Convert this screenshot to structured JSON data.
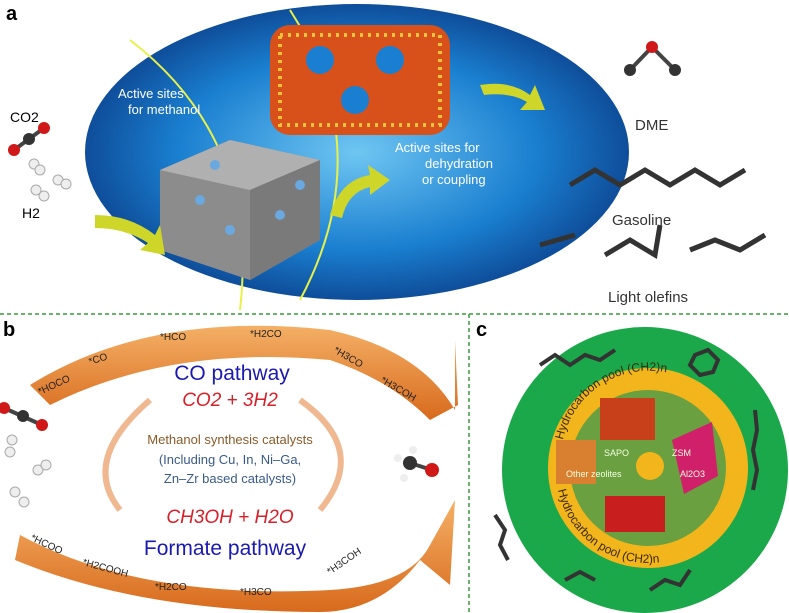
{
  "panel_a": {
    "label": "a",
    "reactant_co2": "CO2",
    "reactant_h2": "H2",
    "methanol_sites": [
      "Active sites",
      "for methanol"
    ],
    "dehydration_sites": [
      "Active sites for",
      "dehydration",
      "or coupling"
    ],
    "products": [
      "DME",
      "Gasoline",
      "Light olefins"
    ]
  },
  "panel_b": {
    "label": "b",
    "co_pathway_title": "CO pathway",
    "reactants": "CO2 + 3H2",
    "catalyst_title": "Methanol synthesis catalysts",
    "catalyst_detail": [
      "(Including Cu, In, Ni–Ga,",
      "Zn–Zr based catalysts)"
    ],
    "products": "CH3OH + H2O",
    "formate_pathway_title": "Formate pathway",
    "co_intermediates": [
      "*HOCO",
      "*CO",
      "*HCO",
      "*H2CO",
      "*H3CO",
      "*H3COH"
    ],
    "formate_intermediates": [
      "*HCOO",
      "*H2COOH",
      "*H2CO",
      "*H3CO",
      "*H3COH"
    ]
  },
  "panel_c": {
    "label": "c",
    "pool_top": "Hydrocarbon pool (CH2)n",
    "pool_bottom": "Hydrocarbon pool (CH2)n",
    "catalysts": [
      "SAPO",
      "ZSM",
      "Other zeolites",
      "Al2O3"
    ]
  },
  "colors": {
    "ellipse_blue": "#1a6fc0",
    "arrow_orange": "#e8893a",
    "pool_yellow": "#f2b51c",
    "outer_green": "#1aa84a",
    "co_pathway_blue": "#1a1ab0",
    "equation_red": "#d8202a",
    "divider_green": "#3a9a3a"
  }
}
